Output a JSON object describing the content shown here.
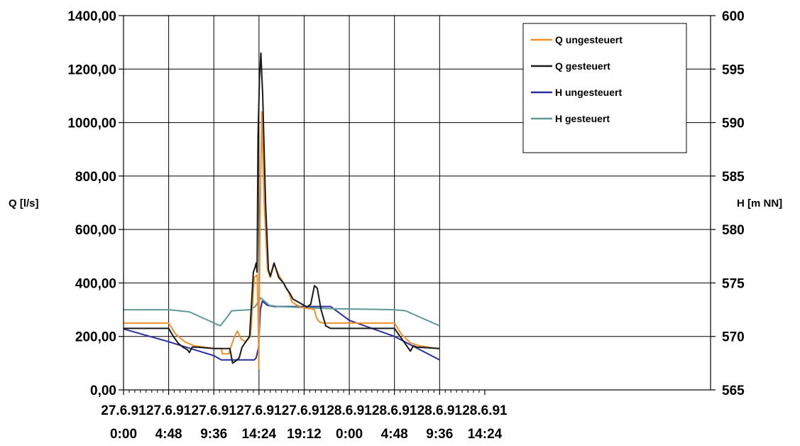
{
  "chart_data": {
    "type": "line",
    "title": "",
    "ylabel": "Q [l/s]",
    "y2label": "H [m NN]",
    "xlim_hours": [
      0,
      62.4
    ],
    "ylim": [
      0,
      1400
    ],
    "y2lim": [
      565,
      600
    ],
    "grid": true,
    "legend_position": "top-right",
    "x_ticks": [
      {
        "line1": "27.6.91",
        "line2": "0:00",
        "hours": 0
      },
      {
        "line1": "27.6.91",
        "line2": "4:48",
        "hours": 4.8
      },
      {
        "line1": "27.6.91",
        "line2": "9:36",
        "hours": 9.6
      },
      {
        "line1": "27.6.91",
        "line2": "14:24",
        "hours": 14.4
      },
      {
        "line1": "27.6.91",
        "line2": "19:12",
        "hours": 19.2
      },
      {
        "line1": "28.6.91",
        "line2": "0:00",
        "hours": 24.0
      },
      {
        "line1": "28.6.91",
        "line2": "4:48",
        "hours": 28.8
      },
      {
        "line1": "28.6.91",
        "line2": "9:36",
        "hours": 33.6
      },
      {
        "line1": "28.6.91",
        "line2": "14:24",
        "hours": 38.4
      }
    ],
    "y_ticks": [
      "0,00",
      "200,00",
      "400,00",
      "600,00",
      "800,00",
      "1000,00",
      "1200,00",
      "1400,00"
    ],
    "y_tick_values": [
      0,
      200,
      400,
      600,
      800,
      1000,
      1200,
      1400
    ],
    "y2_ticks": [
      "565",
      "570",
      "575",
      "580",
      "585",
      "590",
      "595",
      "600"
    ],
    "y2_tick_values": [
      565,
      570,
      575,
      580,
      585,
      590,
      595,
      600
    ],
    "series": [
      {
        "name": "Q ungesteuert",
        "axis": "left",
        "color": "#f0902a",
        "points": [
          [
            0,
            250
          ],
          [
            4.8,
            250
          ],
          [
            5.5,
            210
          ],
          [
            6.5,
            180
          ],
          [
            7.5,
            165
          ],
          [
            9.6,
            155
          ],
          [
            10.4,
            155
          ],
          [
            10.5,
            135
          ],
          [
            11.2,
            135
          ],
          [
            11.4,
            160
          ],
          [
            11.8,
            200
          ],
          [
            12.1,
            220
          ],
          [
            12.5,
            190
          ],
          [
            13.0,
            180
          ],
          [
            13.5,
            200
          ],
          [
            13.9,
            420
          ],
          [
            14.2,
            430
          ],
          [
            14.3,
            300
          ],
          [
            14.38,
            80
          ],
          [
            14.5,
            620
          ],
          [
            14.7,
            1040
          ],
          [
            14.95,
            700
          ],
          [
            15.3,
            450
          ],
          [
            15.6,
            420
          ],
          [
            16.0,
            470
          ],
          [
            16.5,
            430
          ],
          [
            17.0,
            400
          ],
          [
            17.5,
            370
          ],
          [
            17.9,
            330
          ],
          [
            18.3,
            320
          ],
          [
            18.8,
            310
          ],
          [
            19.5,
            305
          ],
          [
            20.0,
            303
          ],
          [
            20.3,
            300
          ],
          [
            20.5,
            270
          ],
          [
            20.8,
            255
          ],
          [
            21.2,
            250
          ],
          [
            28.8,
            250
          ],
          [
            29.5,
            210
          ],
          [
            30.5,
            175
          ],
          [
            31.5,
            165
          ],
          [
            33.2,
            155
          ],
          [
            33.6,
            155
          ]
        ]
      },
      {
        "name": "Q gesteuert",
        "axis": "left",
        "color": "#1a1a1a",
        "points": [
          [
            0,
            230
          ],
          [
            4.8,
            230
          ],
          [
            5.3,
            200
          ],
          [
            5.8,
            175
          ],
          [
            6.3,
            160
          ],
          [
            6.8,
            150
          ],
          [
            7.0,
            140
          ],
          [
            7.3,
            160
          ],
          [
            7.8,
            160
          ],
          [
            9.6,
            155
          ],
          [
            11.3,
            155
          ],
          [
            11.6,
            100
          ],
          [
            12.0,
            110
          ],
          [
            12.3,
            120
          ],
          [
            12.6,
            160
          ],
          [
            13.0,
            180
          ],
          [
            13.4,
            200
          ],
          [
            13.8,
            440
          ],
          [
            14.0,
            460
          ],
          [
            14.1,
            475
          ],
          [
            14.2,
            440
          ],
          [
            14.3,
            950
          ],
          [
            14.45,
            1160
          ],
          [
            14.6,
            1260
          ],
          [
            14.8,
            1100
          ],
          [
            15.1,
            700
          ],
          [
            15.4,
            450
          ],
          [
            15.6,
            425
          ],
          [
            16.0,
            475
          ],
          [
            16.5,
            420
          ],
          [
            17.0,
            400
          ],
          [
            17.3,
            380
          ],
          [
            17.7,
            360
          ],
          [
            18.0,
            340
          ],
          [
            18.5,
            330
          ],
          [
            19.0,
            320
          ],
          [
            19.5,
            310
          ],
          [
            19.9,
            320
          ],
          [
            20.3,
            390
          ],
          [
            20.6,
            380
          ],
          [
            21.0,
            300
          ],
          [
            21.5,
            240
          ],
          [
            22.0,
            230
          ],
          [
            28.8,
            230
          ],
          [
            29.4,
            200
          ],
          [
            29.9,
            175
          ],
          [
            30.2,
            160
          ],
          [
            30.5,
            145
          ],
          [
            30.8,
            165
          ],
          [
            31.2,
            160
          ],
          [
            33.6,
            155
          ]
        ]
      },
      {
        "name": "H ungesteuert",
        "axis": "right",
        "color": "#2a2ea0",
        "points": [
          [
            0,
            570.7
          ],
          [
            4.8,
            569.5
          ],
          [
            9.6,
            568.2
          ],
          [
            10.4,
            567.8
          ],
          [
            13.9,
            567.8
          ],
          [
            14.1,
            568.0
          ],
          [
            14.35,
            569.0
          ],
          [
            14.55,
            572.5
          ],
          [
            14.75,
            573.3
          ],
          [
            15.3,
            572.9
          ],
          [
            16,
            572.8
          ],
          [
            22,
            572.8
          ],
          [
            24,
            571.5
          ],
          [
            28.8,
            570.0
          ],
          [
            33.6,
            567.8
          ]
        ]
      },
      {
        "name": "H gesteuert",
        "axis": "right",
        "color": "#5e9a95",
        "points": [
          [
            0,
            572.5
          ],
          [
            4.8,
            572.5
          ],
          [
            7.0,
            572.3
          ],
          [
            9.0,
            571.5
          ],
          [
            10.0,
            571.1
          ],
          [
            10.3,
            571.0
          ],
          [
            11.0,
            571.8
          ],
          [
            11.5,
            572.4
          ],
          [
            13.5,
            572.5
          ],
          [
            14.0,
            572.8
          ],
          [
            14.6,
            573.6
          ],
          [
            15.5,
            572.9
          ],
          [
            16.5,
            572.8
          ],
          [
            22.0,
            572.6
          ],
          [
            28.8,
            572.5
          ],
          [
            30.0,
            572.4
          ],
          [
            31.5,
            571.8
          ],
          [
            33.6,
            571.0
          ]
        ]
      }
    ]
  }
}
